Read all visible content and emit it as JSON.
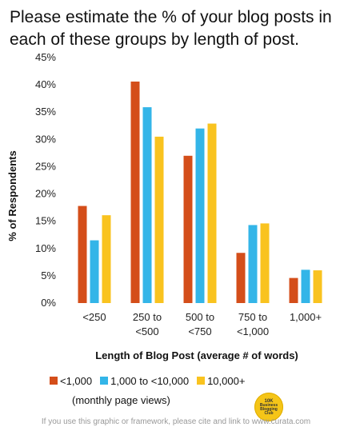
{
  "title": "Please estimate the % of your blog posts in each of these groups by length of post.",
  "chart_data": {
    "type": "bar",
    "categories": [
      "<250",
      "250 to\n<500",
      "500 to\n<750",
      "750 to\n<1,000",
      "1,000+"
    ],
    "series": [
      {
        "name": "<1,000",
        "color": "#d44e1a",
        "values": [
          17.8,
          40.6,
          27.0,
          9.2,
          4.6
        ]
      },
      {
        "name": "1,000 to <10,000",
        "color": "#33b5e8",
        "values": [
          11.5,
          35.9,
          32.0,
          14.3,
          6.1
        ]
      },
      {
        "name": "10,000+",
        "color": "#f9c31f",
        "values": [
          16.1,
          30.5,
          32.9,
          14.6,
          6.0
        ]
      }
    ],
    "ylim": [
      0,
      45
    ],
    "yticks": [
      "0%",
      "5%",
      "10%",
      "15%",
      "20%",
      "25%",
      "30%",
      "35%",
      "40%",
      "45%"
    ],
    "ylabel": "% of Respondents",
    "xlabel": "Length of Blog Post (average # of words)",
    "legend_note": "(monthly page views)"
  },
  "badge": {
    "line1": "10K",
    "line2": "Business",
    "line3": "Blogging",
    "line4": "Club"
  },
  "footer": "If you use this graphic or framework, please cite and link to www.curata.com"
}
